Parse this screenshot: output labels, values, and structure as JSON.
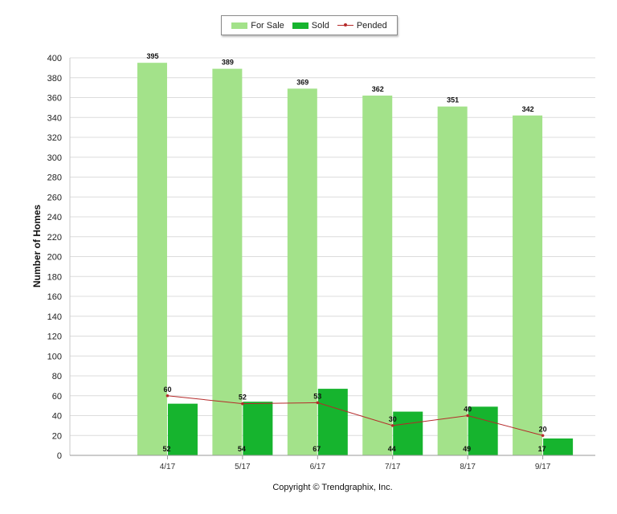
{
  "legend": {
    "for_sale": "For Sale",
    "sold": "Sold",
    "pended": "Pended"
  },
  "footer": {
    "copyright": "Copyright © Trendgraphix, Inc."
  },
  "colors": {
    "for_sale": "#a3e28a",
    "sold": "#16b42e",
    "pended": "#b52a2a",
    "grid": "#dcdcdc"
  },
  "chart_data": {
    "type": "bar",
    "categories": [
      "4/17",
      "5/17",
      "6/17",
      "7/17",
      "8/17",
      "9/17"
    ],
    "series": [
      {
        "name": "For Sale",
        "type": "bar",
        "values": [
          395,
          389,
          369,
          362,
          351,
          342
        ]
      },
      {
        "name": "Sold",
        "type": "bar",
        "values": [
          52,
          54,
          67,
          44,
          49,
          17
        ]
      },
      {
        "name": "Pended",
        "type": "line",
        "values": [
          60,
          52,
          53,
          30,
          40,
          20
        ]
      }
    ],
    "ylabel": "Number of Homes",
    "xlabel": "",
    "ylim": [
      0,
      400
    ],
    "yticks": [
      0,
      20,
      40,
      60,
      80,
      100,
      120,
      140,
      160,
      180,
      200,
      220,
      240,
      260,
      280,
      300,
      320,
      340,
      360,
      380,
      400
    ],
    "grid": true,
    "legend_position": "top"
  }
}
